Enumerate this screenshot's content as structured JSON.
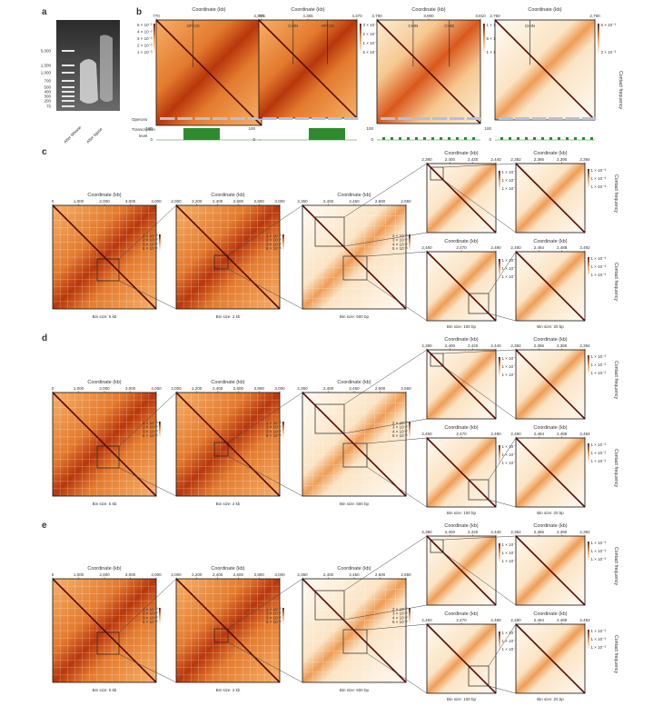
{
  "panel_letters": {
    "a": "a",
    "b": "b",
    "c": "c",
    "d": "d",
    "e": "e"
  },
  "gel": {
    "ladder": [
      "5,000",
      "1,500",
      "1,000",
      "700",
      "500",
      "400",
      "300",
      "200",
      "75"
    ],
    "lanes": [
      "After MNase",
      "After ligase"
    ]
  },
  "b_maps": [
    {
      "xlabel": "Coordinate (kb)",
      "ticks": [
        "770",
        "775"
      ],
      "annotations": [
        "OPCID"
      ],
      "scale": [
        "5 × 10⁻³",
        "4 × 10⁻³",
        "3 × 10⁻³",
        "2 × 10⁻³",
        "1 × 10⁻³"
      ]
    },
    {
      "xlabel": "Coordinate (kb)",
      "ticks": [
        "4,360",
        "4,365",
        "4,370"
      ],
      "annotations": [
        "CHIN",
        "OPCID"
      ],
      "scale": [
        "3 × 10⁻³",
        "2 × 10⁻³",
        "1 × 10⁻³",
        "5 × 10⁻³"
      ]
    },
    {
      "xlabel": "Coordinate (kb)",
      "ticks": [
        "3,790",
        "3,800",
        "3,810"
      ],
      "annotations": [
        "CHIN",
        "CHID"
      ],
      "scale": [
        "1 × 10⁻³",
        "5 × 10⁻³",
        "1 × 10⁻³"
      ]
    },
    {
      "xlabel": "Coordinate (kb)",
      "ticks": [
        "2,750",
        "2,790"
      ],
      "annotations": [
        "CHIN"
      ],
      "scale": [
        "5 × 10⁻³",
        "2 × 10⁻³"
      ]
    }
  ],
  "b_tracks": {
    "operons": "Operons",
    "transcription": "Transcription",
    "level": "level",
    "axis": [
      "100",
      "50",
      "0"
    ]
  },
  "contact_label": "Contact frequency",
  "rows": [
    {
      "id": "c",
      "maps": [
        {
          "xlabel": "Coordinate (kb)",
          "ticks": [
            "0",
            "1,000",
            "2,000",
            "3,000",
            "4,000"
          ],
          "bin": "Bin size: 5 kb",
          "scale": [
            "1 × 10⁻³",
            "2 × 10⁻³",
            "3 × 10⁻³",
            "5 × 10⁻³"
          ]
        },
        {
          "xlabel": "Coordinate (kb)",
          "ticks": [
            "2,000",
            "2,200",
            "2,400",
            "2,600",
            "2,800",
            "3,000"
          ],
          "bin": "Bin size: 2 kb",
          "scale": [
            "1 × 10⁻³",
            "2 × 10⁻³",
            "3 × 10⁻³",
            "5 × 10⁻³"
          ]
        },
        {
          "xlabel": "Coordinate (kb)",
          "ticks": [
            "2,350",
            "2,400",
            "2,450",
            "2,500",
            "2,550"
          ],
          "bin": "Bin size: 500 bp",
          "scale": [
            "2 × 10⁻³",
            "3 × 10⁻³",
            "4 × 10⁻³",
            "5 × 10⁻³"
          ]
        },
        {
          "xlabel": "Coordinate (kb)",
          "ticks": [
            "2,380",
            "2,400",
            "2,420",
            "2,440"
          ],
          "bin": "",
          "scale": [
            "1 × 10⁻³",
            "1 × 10⁻³",
            "1 × 10⁻³"
          ]
        },
        {
          "xlabel": "Coordinate (kb)",
          "ticks": [
            "2,382",
            "2,386",
            "2,390",
            "2,394"
          ],
          "bin": "",
          "scale": [
            "1 × 10⁻³",
            "1 × 10⁻³",
            "1 × 10⁻³"
          ]
        },
        {
          "xlabel": "Coordinate (kb)",
          "ticks": [
            "2,450",
            "2,470",
            "2,490"
          ],
          "bin": "Bin size: 100 bp",
          "scale": [
            "1 × 10⁻³",
            "1 × 10⁻³",
            "1 × 10⁻³"
          ]
        },
        {
          "xlabel": "Coordinate (kb)",
          "ticks": [
            "2,480",
            "2,484",
            "2,488",
            "2,492"
          ],
          "bin": "Bin size: 20 bp",
          "scale": [
            "1 × 10⁻³",
            "1 × 10⁻³",
            "1 × 10⁻³"
          ]
        }
      ]
    },
    {
      "id": "d",
      "maps": [
        {
          "xlabel": "Coordinate (kb)",
          "ticks": [
            "0",
            "1,000",
            "2,000",
            "3,000",
            "4,000"
          ],
          "bin": "Bin size: 5 kb",
          "scale": [
            "1 × 10⁻³",
            "2 × 10⁻³",
            "3 × 10⁻³",
            "5 × 10⁻³"
          ]
        },
        {
          "xlabel": "Coordinate (kb)",
          "ticks": [
            "2,000",
            "2,200",
            "2,400",
            "2,600",
            "2,800",
            "3,000"
          ],
          "bin": "Bin size: 2 kb",
          "scale": [
            "1 × 10⁻³",
            "2 × 10⁻³",
            "3 × 10⁻³",
            "5 × 10⁻³"
          ]
        },
        {
          "xlabel": "Coordinate (kb)",
          "ticks": [
            "2,350",
            "2,400",
            "2,450",
            "2,500",
            "2,550"
          ],
          "bin": "Bin size: 500 bp",
          "scale": [
            "2 × 10⁻³",
            "3 × 10⁻³",
            "4 × 10⁻³",
            "5 × 10⁻³"
          ]
        },
        {
          "xlabel": "Coordinate (kb)",
          "ticks": [
            "2,380",
            "2,400",
            "2,420",
            "2,440"
          ],
          "bin": "",
          "scale": [
            "1 × 10⁻³",
            "1 × 10⁻³",
            "1 × 10⁻³"
          ]
        },
        {
          "xlabel": "Coordinate (kb)",
          "ticks": [
            "2,382",
            "2,386",
            "2,390",
            "2,394"
          ],
          "bin": "",
          "scale": [
            "1 × 10⁻³",
            "1 × 10⁻³",
            "1 × 10⁻³"
          ]
        },
        {
          "xlabel": "Coordinate (kb)",
          "ticks": [
            "2,450",
            "2,470",
            "2,490"
          ],
          "bin": "Bin size: 100 bp",
          "scale": [
            "1 × 10⁻³",
            "1 × 10⁻³",
            "1 × 10⁻³"
          ]
        },
        {
          "xlabel": "Coordinate (kb)",
          "ticks": [
            "2,480",
            "2,484",
            "2,488",
            "2,492"
          ],
          "bin": "Bin size: 20 bp",
          "scale": [
            "1 × 10⁻³",
            "1 × 10⁻³",
            "1 × 10⁻³"
          ]
        }
      ]
    },
    {
      "id": "e",
      "maps": [
        {
          "xlabel": "Coordinate (kb)",
          "ticks": [
            "0",
            "1,000",
            "2,000",
            "3,000",
            "4,000"
          ],
          "bin": "Bin size: 5 kb",
          "scale": [
            "1 × 10⁻³",
            "2 × 10⁻³",
            "3 × 10⁻³",
            "5 × 10⁻³"
          ]
        },
        {
          "xlabel": "Coordinate (kb)",
          "ticks": [
            "2,000",
            "2,200",
            "2,400",
            "2,600",
            "2,800",
            "3,000"
          ],
          "bin": "Bin size: 2 kb",
          "scale": [
            "1 × 10⁻³",
            "2 × 10⁻³",
            "3 × 10⁻³",
            "5 × 10⁻³"
          ]
        },
        {
          "xlabel": "Coordinate (kb)",
          "ticks": [
            "2,350",
            "2,400",
            "2,450",
            "2,500",
            "2,550"
          ],
          "bin": "Bin size: 500 bp",
          "scale": [
            "2 × 10⁻³",
            "3 × 10⁻³",
            "4 × 10⁻³",
            "5 × 10⁻³"
          ]
        },
        {
          "xlabel": "Coordinate (kb)",
          "ticks": [
            "2,380",
            "2,400",
            "2,420",
            "2,440"
          ],
          "bin": "",
          "scale": [
            "1 × 10⁻³",
            "1 × 10⁻³",
            "1 × 10⁻³"
          ]
        },
        {
          "xlabel": "Coordinate (kb)",
          "ticks": [
            "2,382",
            "2,386",
            "2,390",
            "2,394"
          ],
          "bin": "",
          "scale": [
            "1 × 10⁻³",
            "1 × 10⁻³",
            "1 × 10⁻³"
          ]
        },
        {
          "xlabel": "Coordinate (kb)",
          "ticks": [
            "2,450",
            "2,470",
            "2,490"
          ],
          "bin": "Bin size: 100 bp",
          "scale": [
            "1 × 10⁻³",
            "1 × 10⁻³",
            "1 × 10⁻³"
          ]
        },
        {
          "xlabel": "Coordinate (kb)",
          "ticks": [
            "2,480",
            "2,484",
            "2,488",
            "2,492"
          ],
          "bin": "Bin size: 20 bp",
          "scale": [
            "1 × 10⁻³",
            "1 × 10⁻³",
            "1 × 10⁻³"
          ]
        }
      ]
    }
  ],
  "colors": {
    "map_light": "#fdf3e2",
    "map_mid": "#f2a45a",
    "map_dark": "#c4410f",
    "diagonal": "#5a0c05",
    "transcription": "#2e8b2e",
    "operon": "#b8bfd6"
  }
}
